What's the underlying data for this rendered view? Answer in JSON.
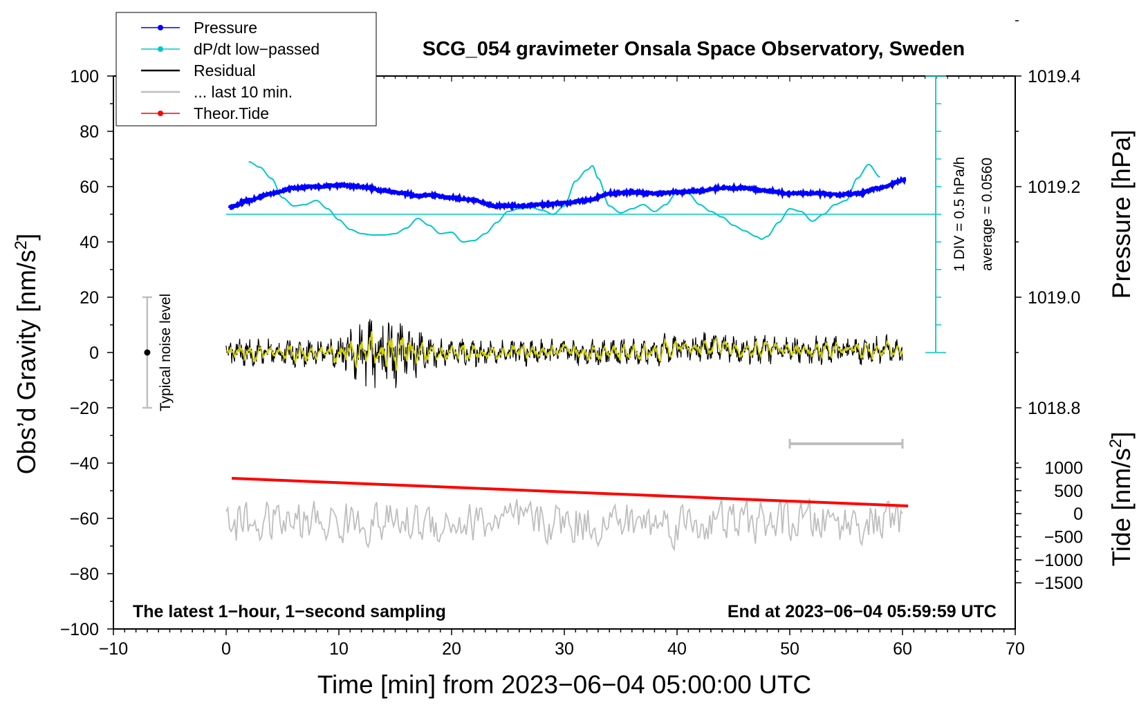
{
  "chart_data": {
    "type": "line",
    "title": "SCG_054 gravimeter Onsala Space Observatory, Sweden",
    "xlabel": "Time [min] from 2023−06−04 05:00:00 UTC",
    "xlim": [
      -10,
      70
    ],
    "x_ticks": [
      -10,
      0,
      10,
      20,
      30,
      40,
      50,
      60,
      70
    ],
    "x_tick_labels": [
      "−10",
      "0",
      "10",
      "20",
      "30",
      "40",
      "50",
      "60",
      "70"
    ],
    "left_axis": {
      "label": "Obs’d Gravity [nm/s",
      "label_sup": "2",
      "label_end": "]",
      "ylim": [
        -100,
        100
      ],
      "ticks": [
        100,
        80,
        60,
        40,
        20,
        0,
        -20,
        -40,
        -60,
        -80,
        -100
      ],
      "tick_labels": [
        "100",
        "80",
        "60",
        "40",
        "20",
        "0",
        "−20",
        "−40",
        "−60",
        "−80",
        "−100"
      ]
    },
    "pressure_axis": {
      "label": "Pressure [hPa]",
      "values": [
        1019.4,
        1019.2,
        1019.0,
        1018.8
      ],
      "tick_labels": [
        "1019.4",
        "1019.2",
        "1019.0",
        "1018.8"
      ]
    },
    "tide_axis": {
      "label": "Tide [nm/s",
      "label_sup": "2",
      "label_end": "]",
      "values": [
        1000,
        500,
        0,
        -500,
        -1000,
        -1500
      ],
      "tick_labels": [
        "1000",
        "500",
        "0",
        "−500",
        "−1000",
        "−1500"
      ]
    },
    "dpdt_scale": {
      "div_label": "1 DIV = 0.5 hPa/h",
      "average_label": "average = 0.0560",
      "baseline_y": 50
    },
    "noise_indicator": {
      "label": "Typical noise level",
      "x": -7,
      "y": 0,
      "low": -20,
      "high": 20
    },
    "last10_bar": {
      "x_start": 50,
      "x_end": 60,
      "y": -33
    },
    "legend": [
      {
        "label": "Pressure",
        "color": "#0000ff",
        "marker": true
      },
      {
        "label": "dP/dt low−passed",
        "color": "#00c8c8",
        "marker": true
      },
      {
        "label": "Residual",
        "color": "#000000",
        "marker": false
      },
      {
        "label": "... last 10 min.",
        "color": "#bebebe",
        "marker": false
      },
      {
        "label": "Theor.Tide",
        "color": "#ff0000",
        "marker": true
      }
    ],
    "footer_left": "The latest 1−hour, 1−second sampling",
    "footer_right": "End at 2023−06−04 05:59:59 UTC",
    "series": [
      {
        "name": "Pressure",
        "color": "#0000ff",
        "x": [
          0.3,
          2,
          4,
          6,
          8,
          10,
          12,
          14,
          16,
          17,
          18,
          20,
          22,
          24,
          26,
          28,
          30,
          32,
          34,
          36,
          38,
          40,
          42,
          44,
          46,
          48,
          50,
          52,
          53,
          54,
          56,
          58,
          60.3
        ],
        "values": [
          52.5,
          55,
          57.5,
          59.5,
          60,
          60.5,
          60,
          58.5,
          57.5,
          56.5,
          57,
          56,
          55,
          53,
          53,
          53.5,
          54,
          55,
          57.5,
          58,
          57.5,
          58,
          58.5,
          59.5,
          59.5,
          58.5,
          57.5,
          57.5,
          57.5,
          57,
          57.5,
          59.5,
          62.5
        ]
      },
      {
        "name": "dP/dt low-passed",
        "color": "#00c8c8",
        "x": [
          2,
          3,
          4,
          5,
          6,
          7,
          8,
          9,
          10,
          11,
          12,
          13,
          14,
          15,
          16,
          17,
          18,
          19,
          20,
          21,
          22,
          23,
          24,
          25,
          26,
          27,
          28,
          29,
          30,
          31,
          32,
          32.5,
          33,
          34,
          35,
          36,
          37,
          38,
          39,
          40,
          41,
          42,
          43,
          44,
          45,
          46,
          47,
          47.5,
          48,
          49,
          50,
          51,
          52,
          53,
          54,
          55,
          56,
          57,
          58
        ],
        "values": [
          69,
          67,
          63,
          56,
          53,
          53.5,
          55,
          52,
          48,
          44.5,
          43,
          42.5,
          42.5,
          43,
          45,
          48.5,
          46,
          43,
          43.5,
          40,
          40.5,
          43,
          47,
          51,
          52,
          52.5,
          51.5,
          50,
          53,
          62,
          66,
          67.5,
          63,
          53,
          50.5,
          52,
          53.5,
          51,
          53.5,
          58,
          57.5,
          53.5,
          51,
          49,
          46,
          44,
          42,
          41,
          42,
          47,
          52,
          51,
          47.5,
          50,
          53.5,
          55,
          63,
          68,
          63.5
        ]
      },
      {
        "name": "Theor.Tide",
        "color": "#ff0000",
        "x": [
          0.5,
          60.5
        ],
        "values": [
          -45.5,
          -55.5
        ]
      }
    ]
  }
}
